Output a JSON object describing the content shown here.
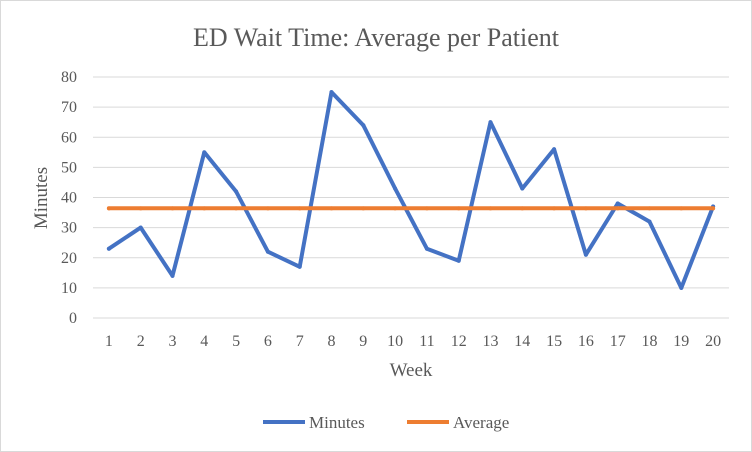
{
  "chart_data": {
    "type": "line",
    "title": "ED Wait Time: Average  per Patient",
    "xlabel": "Week",
    "ylabel": "Minutes",
    "categories": [
      "1",
      "2",
      "3",
      "4",
      "5",
      "6",
      "7",
      "8",
      "9",
      "10",
      "11",
      "12",
      "13",
      "14",
      "15",
      "16",
      "17",
      "18",
      "19",
      "20"
    ],
    "ylim": [
      0,
      80
    ],
    "yticks": [
      "0",
      "10",
      "20",
      "30",
      "40",
      "50",
      "60",
      "70",
      "80"
    ],
    "grid": true,
    "legend_position": "bottom",
    "series": [
      {
        "name": "Minutes",
        "color": "#4472c4",
        "values": [
          23,
          30,
          14,
          55,
          42,
          22,
          17,
          75,
          64,
          43,
          23,
          19,
          65,
          43,
          56,
          21,
          38,
          32,
          10,
          37
        ]
      },
      {
        "name": "Average",
        "color": "#ed7d31",
        "values": [
          36.4,
          36.4,
          36.4,
          36.4,
          36.4,
          36.4,
          36.4,
          36.4,
          36.4,
          36.4,
          36.4,
          36.4,
          36.4,
          36.4,
          36.4,
          36.4,
          36.4,
          36.4,
          36.4,
          36.4
        ]
      }
    ]
  }
}
